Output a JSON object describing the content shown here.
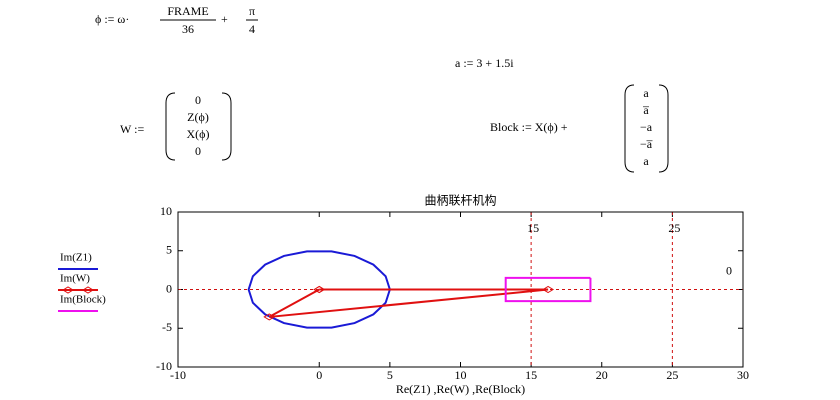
{
  "worksheet": {
    "phi": {
      "lhs": "ϕ := ω·",
      "num1": "FRAME",
      "den1": "36",
      "plus": "+",
      "num2": "π",
      "den2": "4"
    },
    "a_def": "a := 3 + 1.5i",
    "w": {
      "lhs": "W :=",
      "items": [
        "0",
        "Z(ϕ)",
        "X(ϕ)",
        "0"
      ]
    },
    "block": {
      "lhs": "Block := X(ϕ) +",
      "items": [
        "a",
        "a̅",
        "−a",
        "−a̅",
        "a"
      ]
    }
  },
  "chart_data": {
    "type": "line",
    "title": "曲柄联杆机构",
    "x_label": "Re(Z1) ,Re(W) ,Re(Block)",
    "xlim": [
      -10,
      30
    ],
    "ylim": [
      -10,
      10
    ],
    "xticks": [
      -10,
      0,
      5,
      10,
      15,
      20,
      25,
      30
    ],
    "yticks": [
      -10,
      -5,
      0,
      5,
      10
    ],
    "markers": {
      "x": [
        15,
        25
      ],
      "y": [
        0
      ]
    },
    "series": [
      {
        "name": "Im(Z1)",
        "color": "#1a1ad6",
        "x": [
          5,
          4.7,
          3.83,
          2.5,
          0.87,
          -0.87,
          -2.5,
          -3.83,
          -4.7,
          -5,
          -4.7,
          -3.83,
          -2.5,
          -0.87,
          0.87,
          2.5,
          3.83,
          4.7,
          5
        ],
        "values": [
          0,
          1.71,
          3.21,
          4.33,
          4.92,
          4.92,
          4.33,
          3.21,
          1.71,
          0,
          -1.71,
          -3.21,
          -4.33,
          -4.92,
          -4.92,
          -4.33,
          -3.21,
          -1.71,
          0
        ]
      },
      {
        "name": "Im(W)",
        "color": "#e01010",
        "marker": "diamond",
        "x": [
          0,
          -3.54,
          16.2,
          0
        ],
        "values": [
          0,
          -3.54,
          0,
          0
        ]
      },
      {
        "name": "Im(Block)",
        "color": "#ee10ee",
        "x": [
          19.2,
          19.2,
          13.2,
          13.2,
          19.2
        ],
        "values": [
          1.5,
          -1.5,
          -1.5,
          1.5,
          1.5
        ]
      }
    ]
  }
}
